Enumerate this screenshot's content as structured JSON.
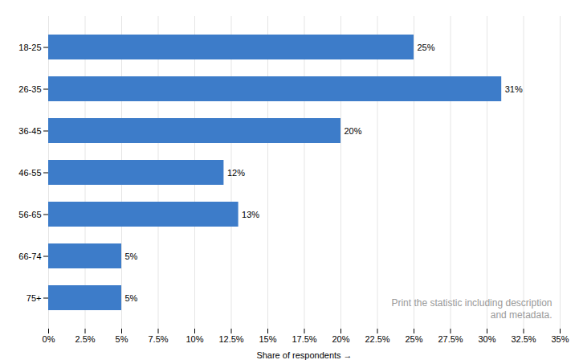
{
  "chart_data": {
    "type": "bar",
    "orientation": "horizontal",
    "categories": [
      "18-25",
      "26-35",
      "36-45",
      "46-55",
      "56-65",
      "66-74",
      "75+"
    ],
    "values": [
      25,
      31,
      20,
      12,
      13,
      5,
      5
    ],
    "value_labels": [
      "25%",
      "31%",
      "20%",
      "12%",
      "13%",
      "5%",
      "5%"
    ],
    "data_labels": true,
    "color": "#3d7cc9",
    "xlabel": "Share of respondents",
    "xlim": [
      0,
      35
    ],
    "xticks": [
      {
        "value": 0,
        "label": "0%"
      },
      {
        "value": 2.5,
        "label": "2.5%"
      },
      {
        "value": 5,
        "label": "5%"
      },
      {
        "value": 7.5,
        "label": "7.5%"
      },
      {
        "value": 10,
        "label": "10%"
      },
      {
        "value": 12.5,
        "label": "12.5%"
      },
      {
        "value": 15,
        "label": "15%"
      },
      {
        "value": 17.5,
        "label": "17.5%"
      },
      {
        "value": 20,
        "label": "20%"
      },
      {
        "value": 22.5,
        "label": "22.5%"
      },
      {
        "value": 25,
        "label": "25%"
      },
      {
        "value": 27.5,
        "label": "27.5%"
      },
      {
        "value": 30,
        "label": "30%"
      },
      {
        "value": 32.5,
        "label": "32.5%"
      },
      {
        "value": 35,
        "label": "35%"
      }
    ],
    "grid": true,
    "annotations": [
      "Print the statistic including description\nand metadata."
    ]
  }
}
